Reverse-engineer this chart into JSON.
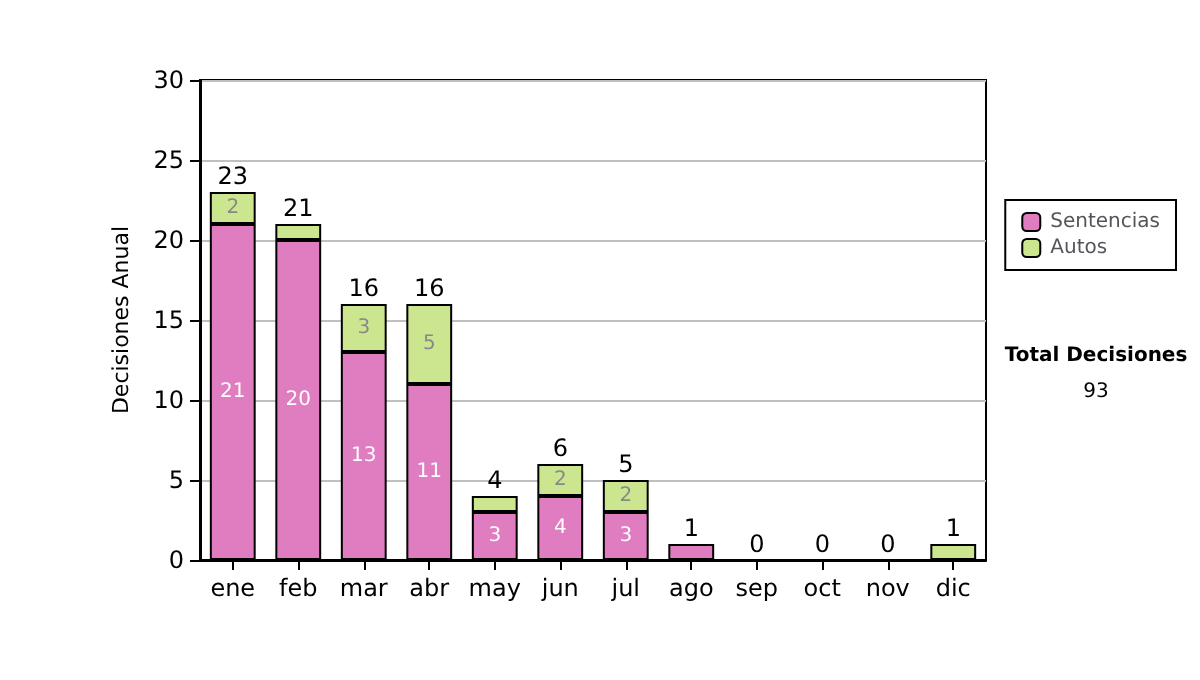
{
  "chart_data": {
    "type": "bar",
    "stacked": true,
    "ylabel": "Decisiones Anual",
    "categories": [
      "ene",
      "feb",
      "mar",
      "abr",
      "may",
      "jun",
      "jul",
      "ago",
      "sep",
      "oct",
      "nov",
      "dic"
    ],
    "series": [
      {
        "name": "Sentencias",
        "color": "#e07cc0",
        "values": [
          21,
          20,
          13,
          11,
          3,
          4,
          3,
          1,
          0,
          0,
          0,
          0
        ],
        "value_labels": [
          "21",
          "20",
          "13",
          "11",
          "3",
          "4",
          "3",
          null,
          null,
          null,
          null,
          null
        ]
      },
      {
        "name": "Autos",
        "color": "#cce68f",
        "values": [
          2,
          1,
          3,
          5,
          1,
          2,
          2,
          0,
          0,
          0,
          0,
          1
        ],
        "value_labels": [
          "2",
          null,
          "3",
          "5",
          null,
          "2",
          "2",
          null,
          null,
          null,
          null,
          null
        ]
      }
    ],
    "totals": [
      "23",
      "21",
      "16",
      "16",
      "4",
      "6",
      "5",
      "1",
      "0",
      "0",
      "0",
      "1"
    ],
    "ylim": [
      0,
      30
    ],
    "yticks": [
      0,
      5,
      10,
      15,
      20,
      25,
      30
    ],
    "grid": "y",
    "legend": "right",
    "annotations": [
      "Total Decisiones",
      "93"
    ]
  }
}
